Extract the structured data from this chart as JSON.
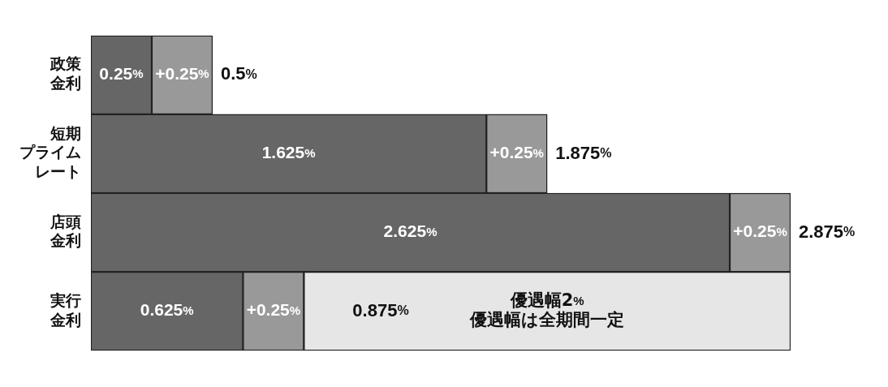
{
  "chart_data": {
    "type": "bar",
    "orientation": "horizontal",
    "stacked": true,
    "categories": [
      "政策金利",
      "短期プライムレート",
      "店頭金利",
      "実行金利"
    ],
    "series": [
      {
        "color": "#666666",
        "values": [
          0.25,
          1.625,
          2.625,
          0.625
        ],
        "value_labels": [
          "0.25%",
          "1.625%",
          "2.625%",
          "0.625%"
        ]
      },
      {
        "color": "#999999",
        "values": [
          0.25,
          0.25,
          0.25,
          0.25
        ],
        "value_labels": [
          "+0.25%",
          "+0.25%",
          "+0.25%",
          "+0.25%"
        ]
      },
      {
        "color": "#e6e6e6",
        "values": [
          null,
          null,
          null,
          2
        ],
        "value_labels": [
          null,
          null,
          null,
          "優遇幅2%\n優遇幅は全期間一定"
        ]
      }
    ],
    "totals": [
      "0.5%",
      "1.875%",
      "2.875%",
      null
    ],
    "annotations": [
      {
        "text": "0.875%",
        "x": 0.875,
        "y": "実行金利"
      }
    ],
    "tick_labels": "y",
    "legend": false
  }
}
